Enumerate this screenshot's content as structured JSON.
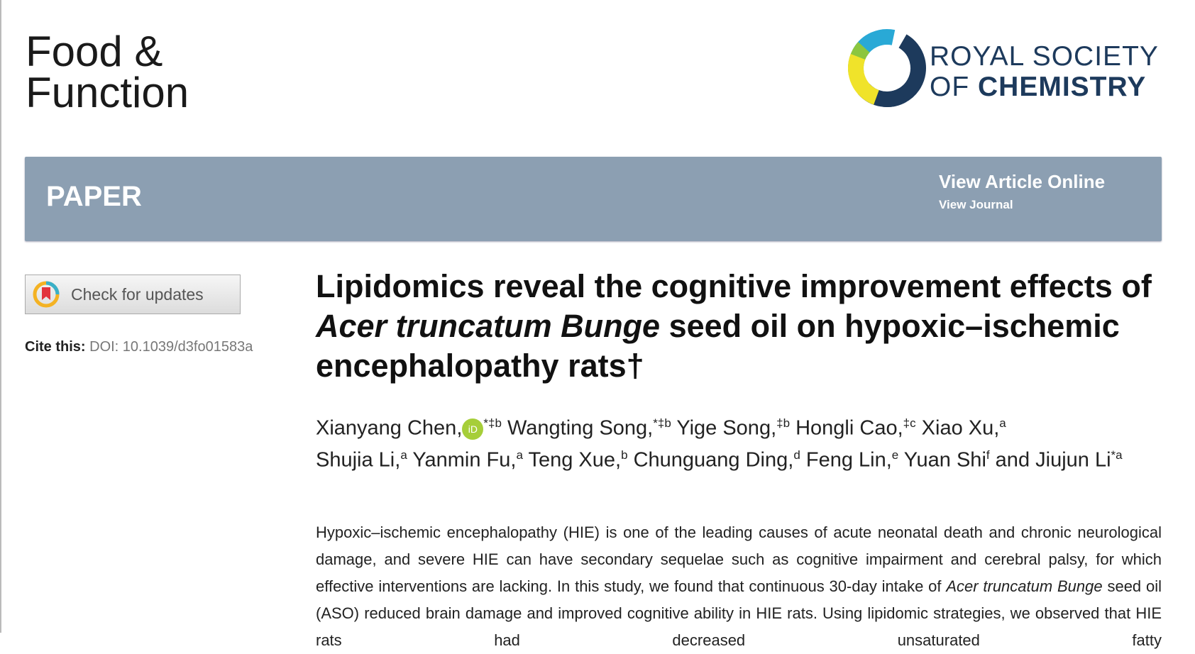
{
  "journal": {
    "line1": "Food &",
    "line2": "Function"
  },
  "publisher": {
    "line1": "ROYAL SOCIETY",
    "line2_light": "OF ",
    "line2_bold": "CHEMISTRY"
  },
  "banner": {
    "type": "PAPER",
    "view_article": "View Article Online",
    "view_journal": "View Journal",
    "color": "#8c9fb2"
  },
  "sidebar": {
    "check_updates": "Check for updates",
    "cite_label": "Cite this:",
    "doi": "DOI: 10.1039/d3fo01583a"
  },
  "title": {
    "part1": "Lipidomics reveal the cognitive improvement effects of ",
    "italic": "Acer truncatum Bunge",
    "part2": " seed oil on hypoxic–ischemic encephalopathy rats†"
  },
  "authors": [
    {
      "name": "Xianyang Chen,",
      "orcid": "iD",
      "sup": "*‡b"
    },
    {
      "name": " Wangting Song,",
      "sup": "*‡b"
    },
    {
      "name": " Yige Song,",
      "sup": "‡b"
    },
    {
      "name": " Hongli Cao,",
      "sup": "‡c"
    },
    {
      "name": " Xiao Xu,",
      "sup": "a"
    },
    {
      "name": " Shujia Li,",
      "sup": "a"
    },
    {
      "name": " Yanmin Fu,",
      "sup": "a"
    },
    {
      "name": " Teng Xue,",
      "sup": "b"
    },
    {
      "name": " Chunguang Ding,",
      "sup": "d"
    },
    {
      "name": " Feng Lin,",
      "sup": "e"
    },
    {
      "name": " Yuan Shi",
      "sup": "f"
    },
    {
      "name": " and Jiujun Li",
      "sup": "*a"
    }
  ],
  "abstract": {
    "p1": "Hypoxic–ischemic encephalopathy (HIE) is one of the leading causes of acute neonatal death and chronic neurological damage, and severe HIE can have secondary sequelae such as cognitive impairment and cerebral palsy, for which effective interventions are lacking. In this study, we found that continuous 30-day intake of ",
    "italic": "Acer truncatum Bunge",
    "p2": " seed oil (ASO) reduced brain damage and improved cognitive ability in HIE rats. Using lipidomic strategies, we observed that HIE rats had decreased unsaturated fatty"
  }
}
